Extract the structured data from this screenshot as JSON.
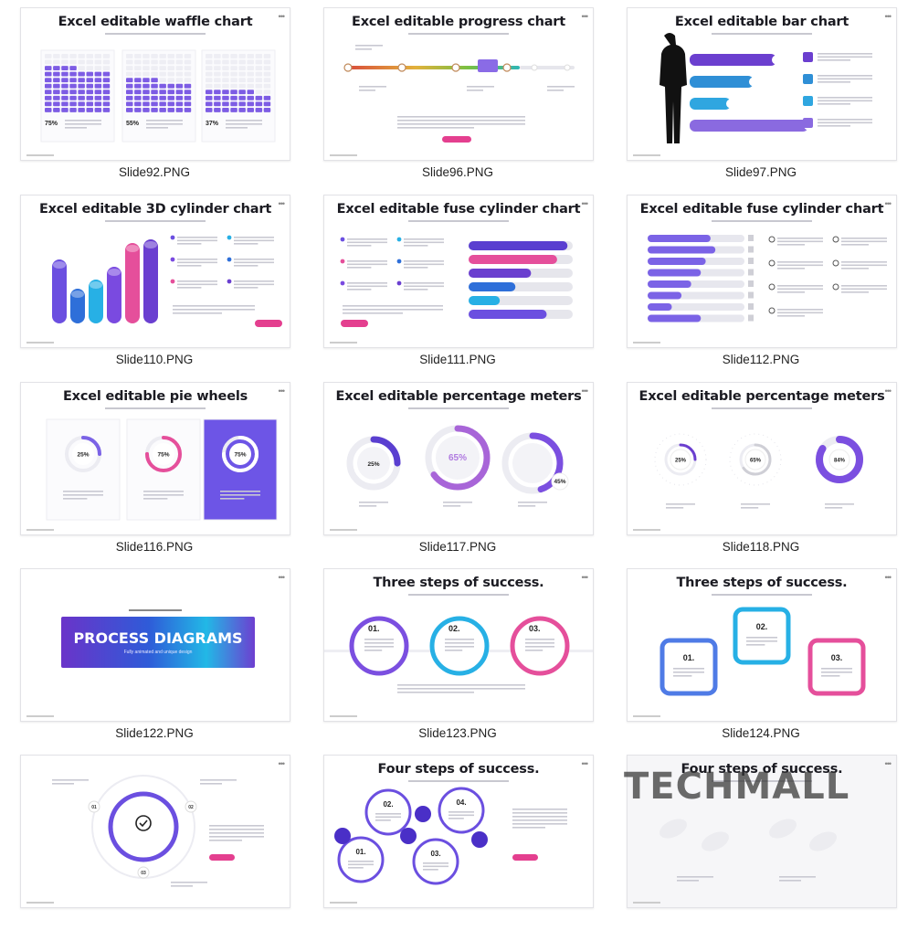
{
  "slides": [
    {
      "id": "slide92",
      "title": "Excel editable waffle chart",
      "caption": "Slide92.PNG",
      "kind": "waffle",
      "values": [
        "75%",
        "55%",
        "37%"
      ]
    },
    {
      "id": "slide96",
      "title": "Excel editable progress chart",
      "caption": "Slide96.PNG",
      "kind": "progress"
    },
    {
      "id": "slide97",
      "title": "Excel editable bar chart",
      "caption": "Slide97.PNG",
      "kind": "bar"
    },
    {
      "id": "slide110",
      "title": "Excel editable 3D cylinder chart",
      "caption": "Slide110.PNG",
      "kind": "cylinder3d"
    },
    {
      "id": "slide111",
      "title": "Excel editable fuse cylinder chart",
      "caption": "Slide111.PNG",
      "kind": "fuse1"
    },
    {
      "id": "slide112",
      "title": "Excel editable fuse cylinder chart",
      "caption": "Slide112.PNG",
      "kind": "fuse2"
    },
    {
      "id": "slide116",
      "title": "Excel editable pie wheels",
      "caption": "Slide116.PNG",
      "kind": "piewheels",
      "values": [
        "25%",
        "75%",
        "75%"
      ]
    },
    {
      "id": "slide117",
      "title": "Excel editable percentage meters",
      "caption": "Slide117.PNG",
      "kind": "meters1",
      "values": [
        "25%",
        "65%",
        "45%"
      ]
    },
    {
      "id": "slide118",
      "title": "Excel editable percentage meters",
      "caption": "Slide118.PNG",
      "kind": "meters2",
      "values": [
        "25%",
        "65%",
        "84%"
      ]
    },
    {
      "id": "slide122",
      "title": "",
      "caption": "Slide122.PNG",
      "kind": "process",
      "banner": "PROCESS DIAGRAMS",
      "banner_sub": "Fully animated and unique design"
    },
    {
      "id": "slide123",
      "title": "Three steps of success.",
      "caption": "Slide123.PNG",
      "kind": "steps3a",
      "steps": [
        "01.",
        "02.",
        "03."
      ]
    },
    {
      "id": "slide124",
      "title": "Three steps of success.",
      "caption": "Slide124.PNG",
      "kind": "steps3b",
      "steps": [
        "01.",
        "02.",
        "03."
      ]
    },
    {
      "id": "slide_a",
      "title": "",
      "caption": "",
      "kind": "circle",
      "steps": [
        "01",
        "02",
        "03"
      ]
    },
    {
      "id": "slide_b",
      "title": "Four steps of success.",
      "caption": "",
      "kind": "steps4",
      "steps": [
        "02.",
        "04.",
        "01.",
        "03."
      ]
    },
    {
      "id": "slide_c",
      "title": "Four steps of success.",
      "caption": "",
      "kind": "footprints"
    }
  ],
  "watermark": "TECHMALL",
  "colors": {
    "purple": "#7b4fe0",
    "violet": "#5a3ad1",
    "pink": "#e43f8f",
    "cyan": "#27b7e3",
    "blue": "#3a6ad8",
    "grey": "#d8d8de"
  }
}
